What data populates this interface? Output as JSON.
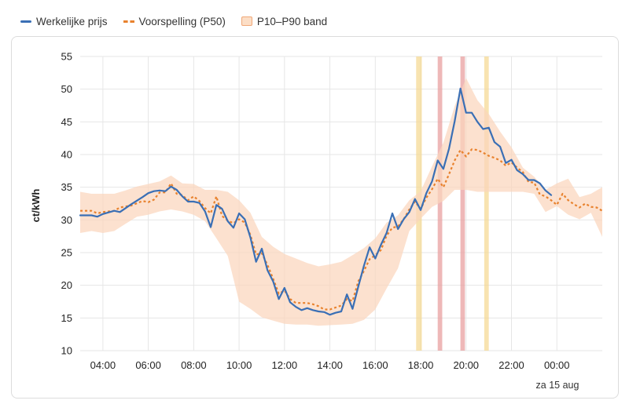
{
  "legend": {
    "actual": "Werkelijke prijs",
    "forecast": "Voorspelling (P50)",
    "band": "P10–P90 band"
  },
  "colors": {
    "actual": "#3a6fb5",
    "forecast": "#e8822e",
    "band": "#fbd5bc",
    "grid": "#e6e6e6",
    "highlight_yellow": "#f5d78e",
    "highlight_red": "#e8a0a0"
  },
  "chart_data": {
    "type": "line",
    "ylabel": "ct/kWh",
    "xlabel": "",
    "ylim": [
      10,
      55
    ],
    "yticks": [
      10,
      15,
      20,
      25,
      30,
      35,
      40,
      45,
      50,
      55
    ],
    "xlim": [
      3.0,
      26.0
    ],
    "xticks": [
      {
        "x": 4,
        "label": "04:00"
      },
      {
        "x": 6,
        "label": "06:00"
      },
      {
        "x": 8,
        "label": "08:00"
      },
      {
        "x": 10,
        "label": "10:00"
      },
      {
        "x": 12,
        "label": "12:00"
      },
      {
        "x": 14,
        "label": "14:00"
      },
      {
        "x": 16,
        "label": "16:00"
      },
      {
        "x": 18,
        "label": "18:00"
      },
      {
        "x": 20,
        "label": "20:00"
      },
      {
        "x": 22,
        "label": "22:00"
      },
      {
        "x": 24,
        "label": "00:00"
      }
    ],
    "date_marker": "za 15 aug",
    "x_note": "x values are hours of day; values above 24 are on the next day",
    "highlights": [
      {
        "from": 17.8,
        "to": 18.05,
        "kind": "yellow"
      },
      {
        "from": 18.75,
        "to": 18.95,
        "kind": "red"
      },
      {
        "from": 19.75,
        "to": 19.95,
        "kind": "red"
      },
      {
        "from": 20.8,
        "to": 21.0,
        "kind": "yellow"
      }
    ],
    "series": [
      {
        "name": "Werkelijke prijs",
        "points": [
          [
            3.0,
            30.7
          ],
          [
            3.5,
            30.7
          ],
          [
            3.75,
            30.5
          ],
          [
            4.0,
            30.9
          ],
          [
            4.5,
            31.4
          ],
          [
            4.75,
            31.2
          ],
          [
            5.25,
            32.4
          ],
          [
            5.75,
            33.5
          ],
          [
            6.0,
            34.1
          ],
          [
            6.25,
            34.4
          ],
          [
            6.5,
            34.5
          ],
          [
            6.75,
            34.4
          ],
          [
            7.0,
            35.1
          ],
          [
            7.25,
            34.6
          ],
          [
            7.5,
            33.6
          ],
          [
            7.75,
            32.8
          ],
          [
            8.0,
            32.8
          ],
          [
            8.25,
            32.6
          ],
          [
            8.5,
            31.3
          ],
          [
            8.75,
            28.9
          ],
          [
            9.0,
            32.3
          ],
          [
            9.25,
            31.7
          ],
          [
            9.5,
            29.8
          ],
          [
            9.75,
            28.8
          ],
          [
            10.0,
            31.0
          ],
          [
            10.25,
            30.1
          ],
          [
            10.5,
            27.3
          ],
          [
            10.75,
            23.6
          ],
          [
            11.0,
            25.6
          ],
          [
            11.25,
            22.3
          ],
          [
            11.5,
            20.6
          ],
          [
            11.75,
            17.9
          ],
          [
            12.0,
            19.6
          ],
          [
            12.25,
            17.4
          ],
          [
            12.5,
            16.7
          ],
          [
            12.75,
            16.2
          ],
          [
            13.0,
            16.5
          ],
          [
            13.25,
            16.2
          ],
          [
            13.5,
            16.0
          ],
          [
            13.75,
            15.9
          ],
          [
            14.0,
            15.5
          ],
          [
            14.25,
            15.8
          ],
          [
            14.5,
            16.0
          ],
          [
            14.75,
            18.6
          ],
          [
            15.0,
            16.4
          ],
          [
            15.25,
            19.8
          ],
          [
            15.5,
            23.0
          ],
          [
            15.75,
            25.8
          ],
          [
            16.0,
            24.1
          ],
          [
            16.25,
            26.2
          ],
          [
            16.5,
            28.0
          ],
          [
            16.75,
            31.0
          ],
          [
            17.0,
            28.6
          ],
          [
            17.25,
            30.1
          ],
          [
            17.5,
            31.2
          ],
          [
            17.75,
            33.2
          ],
          [
            18.0,
            31.5
          ],
          [
            18.25,
            34.1
          ],
          [
            18.5,
            35.9
          ],
          [
            18.75,
            39.1
          ],
          [
            19.0,
            37.8
          ],
          [
            19.25,
            40.9
          ],
          [
            19.5,
            45.1
          ],
          [
            19.75,
            50.1
          ],
          [
            20.0,
            46.4
          ],
          [
            20.25,
            46.4
          ],
          [
            20.5,
            45.0
          ],
          [
            20.75,
            43.9
          ],
          [
            21.0,
            44.1
          ],
          [
            21.25,
            41.9
          ],
          [
            21.5,
            41.2
          ],
          [
            21.75,
            38.7
          ],
          [
            22.0,
            39.2
          ],
          [
            22.25,
            37.6
          ],
          [
            22.5,
            37.0
          ],
          [
            22.75,
            36.1
          ],
          [
            23.0,
            36.1
          ],
          [
            23.25,
            35.6
          ],
          [
            23.5,
            34.5
          ],
          [
            23.75,
            33.8
          ]
        ]
      },
      {
        "name": "Voorspelling (P50)",
        "points": [
          [
            3.0,
            31.4
          ],
          [
            3.5,
            31.4
          ],
          [
            3.75,
            31.0
          ],
          [
            4.0,
            31.2
          ],
          [
            4.5,
            31.4
          ],
          [
            4.75,
            31.9
          ],
          [
            5.25,
            32.2
          ],
          [
            5.75,
            32.9
          ],
          [
            6.0,
            32.7
          ],
          [
            6.25,
            33.1
          ],
          [
            6.5,
            34.2
          ],
          [
            6.75,
            34.2
          ],
          [
            7.0,
            35.6
          ],
          [
            7.25,
            34.0
          ],
          [
            7.5,
            33.8
          ],
          [
            7.75,
            33.0
          ],
          [
            8.0,
            33.6
          ],
          [
            8.25,
            32.9
          ],
          [
            8.5,
            31.8
          ],
          [
            8.75,
            31.0
          ],
          [
            9.0,
            33.6
          ],
          [
            9.25,
            30.6
          ],
          [
            9.5,
            29.9
          ],
          [
            9.75,
            29.5
          ],
          [
            10.0,
            30.1
          ],
          [
            10.25,
            29.6
          ],
          [
            10.5,
            27.7
          ],
          [
            10.75,
            24.7
          ],
          [
            11.0,
            24.9
          ],
          [
            11.25,
            23.1
          ],
          [
            11.5,
            21.0
          ],
          [
            11.75,
            18.7
          ],
          [
            12.0,
            19.2
          ],
          [
            12.25,
            17.9
          ],
          [
            12.5,
            17.3
          ],
          [
            12.75,
            17.3
          ],
          [
            13.0,
            17.3
          ],
          [
            13.25,
            17.1
          ],
          [
            13.5,
            16.8
          ],
          [
            13.75,
            16.3
          ],
          [
            14.0,
            16.3
          ],
          [
            14.25,
            16.6
          ],
          [
            14.5,
            16.9
          ],
          [
            14.75,
            17.9
          ],
          [
            15.0,
            17.6
          ],
          [
            15.25,
            20.6
          ],
          [
            15.5,
            22.2
          ],
          [
            15.75,
            24.0
          ],
          [
            16.0,
            24.6
          ],
          [
            16.25,
            25.4
          ],
          [
            16.5,
            27.6
          ],
          [
            16.75,
            28.8
          ],
          [
            17.0,
            29.0
          ],
          [
            17.25,
            30.1
          ],
          [
            17.5,
            31.6
          ],
          [
            17.75,
            32.8
          ],
          [
            18.0,
            31.7
          ],
          [
            18.25,
            33.4
          ],
          [
            18.5,
            34.7
          ],
          [
            18.75,
            36.3
          ],
          [
            19.0,
            35.0
          ],
          [
            19.25,
            37.0
          ],
          [
            19.5,
            39.1
          ],
          [
            19.75,
            40.7
          ],
          [
            20.0,
            39.7
          ],
          [
            20.25,
            40.8
          ],
          [
            20.5,
            40.7
          ],
          [
            20.75,
            40.3
          ],
          [
            21.0,
            39.8
          ],
          [
            21.25,
            39.5
          ],
          [
            21.5,
            39.1
          ],
          [
            21.75,
            38.3
          ],
          [
            22.0,
            38.8
          ],
          [
            22.25,
            38.0
          ],
          [
            22.5,
            37.3
          ],
          [
            22.75,
            35.8
          ],
          [
            23.0,
            35.7
          ],
          [
            23.25,
            33.9
          ],
          [
            23.5,
            33.6
          ],
          [
            23.75,
            33.0
          ],
          [
            24.0,
            32.3
          ],
          [
            24.25,
            34.0
          ],
          [
            24.5,
            33.0
          ],
          [
            24.75,
            32.4
          ],
          [
            25.0,
            31.9
          ],
          [
            25.25,
            32.5
          ],
          [
            25.5,
            32.0
          ],
          [
            25.75,
            31.9
          ],
          [
            26.0,
            31.4
          ]
        ]
      }
    ],
    "band": {
      "name": "P10–P90 band",
      "lower": [
        [
          3.0,
          28.0
        ],
        [
          3.5,
          28.3
        ],
        [
          4.0,
          28.0
        ],
        [
          4.5,
          28.3
        ],
        [
          5.0,
          29.4
        ],
        [
          5.5,
          30.5
        ],
        [
          6.0,
          30.8
        ],
        [
          6.5,
          31.3
        ],
        [
          7.0,
          31.6
        ],
        [
          7.5,
          31.3
        ],
        [
          8.0,
          30.8
        ],
        [
          8.5,
          29.8
        ],
        [
          9.0,
          27.2
        ],
        [
          9.5,
          24.5
        ],
        [
          10.0,
          17.5
        ],
        [
          10.5,
          16.4
        ],
        [
          11.0,
          15.1
        ],
        [
          11.5,
          14.6
        ],
        [
          12.0,
          14.1
        ],
        [
          12.5,
          14.0
        ],
        [
          13.0,
          14.0
        ],
        [
          13.5,
          13.8
        ],
        [
          14.0,
          13.9
        ],
        [
          14.5,
          14.0
        ],
        [
          15.0,
          14.1
        ],
        [
          15.5,
          14.7
        ],
        [
          16.0,
          16.3
        ],
        [
          16.5,
          19.5
        ],
        [
          17.0,
          22.6
        ],
        [
          17.5,
          28.3
        ],
        [
          18.0,
          30.2
        ],
        [
          18.5,
          32.0
        ],
        [
          19.0,
          32.9
        ],
        [
          19.5,
          34.6
        ],
        [
          20.0,
          34.6
        ],
        [
          20.5,
          34.3
        ],
        [
          21.0,
          34.3
        ],
        [
          21.5,
          34.3
        ],
        [
          22.0,
          34.3
        ],
        [
          22.5,
          34.3
        ],
        [
          23.0,
          34.0
        ],
        [
          23.5,
          31.2
        ],
        [
          24.0,
          32.1
        ],
        [
          24.5,
          30.8
        ],
        [
          25.0,
          30.1
        ],
        [
          25.5,
          31.1
        ],
        [
          26.0,
          27.4
        ]
      ],
      "upper": [
        [
          3.0,
          34.3
        ],
        [
          3.5,
          34.0
        ],
        [
          4.0,
          34.0
        ],
        [
          4.5,
          34.0
        ],
        [
          5.0,
          34.5
        ],
        [
          5.5,
          35.1
        ],
        [
          6.0,
          35.5
        ],
        [
          6.5,
          35.9
        ],
        [
          7.0,
          36.8
        ],
        [
          7.5,
          35.6
        ],
        [
          8.0,
          35.5
        ],
        [
          8.5,
          34.6
        ],
        [
          9.0,
          34.6
        ],
        [
          9.5,
          34.3
        ],
        [
          10.0,
          33.0
        ],
        [
          10.5,
          31.1
        ],
        [
          11.0,
          27.4
        ],
        [
          11.5,
          25.9
        ],
        [
          12.0,
          24.8
        ],
        [
          12.5,
          24.1
        ],
        [
          13.0,
          23.4
        ],
        [
          13.5,
          22.9
        ],
        [
          14.0,
          23.2
        ],
        [
          14.5,
          23.6
        ],
        [
          15.0,
          24.6
        ],
        [
          15.5,
          25.7
        ],
        [
          16.0,
          27.2
        ],
        [
          16.5,
          29.6
        ],
        [
          17.0,
          30.7
        ],
        [
          17.5,
          33.0
        ],
        [
          18.0,
          34.4
        ],
        [
          18.5,
          38.2
        ],
        [
          19.0,
          41.8
        ],
        [
          19.5,
          47.4
        ],
        [
          20.0,
          51.7
        ],
        [
          20.5,
          48.3
        ],
        [
          21.0,
          46.2
        ],
        [
          21.5,
          43.5
        ],
        [
          22.0,
          41.1
        ],
        [
          22.5,
          38.0
        ],
        [
          23.0,
          36.6
        ],
        [
          23.5,
          34.6
        ],
        [
          24.0,
          35.6
        ],
        [
          24.5,
          36.3
        ],
        [
          25.0,
          33.5
        ],
        [
          25.5,
          34.0
        ],
        [
          26.0,
          35.0
        ]
      ]
    }
  }
}
